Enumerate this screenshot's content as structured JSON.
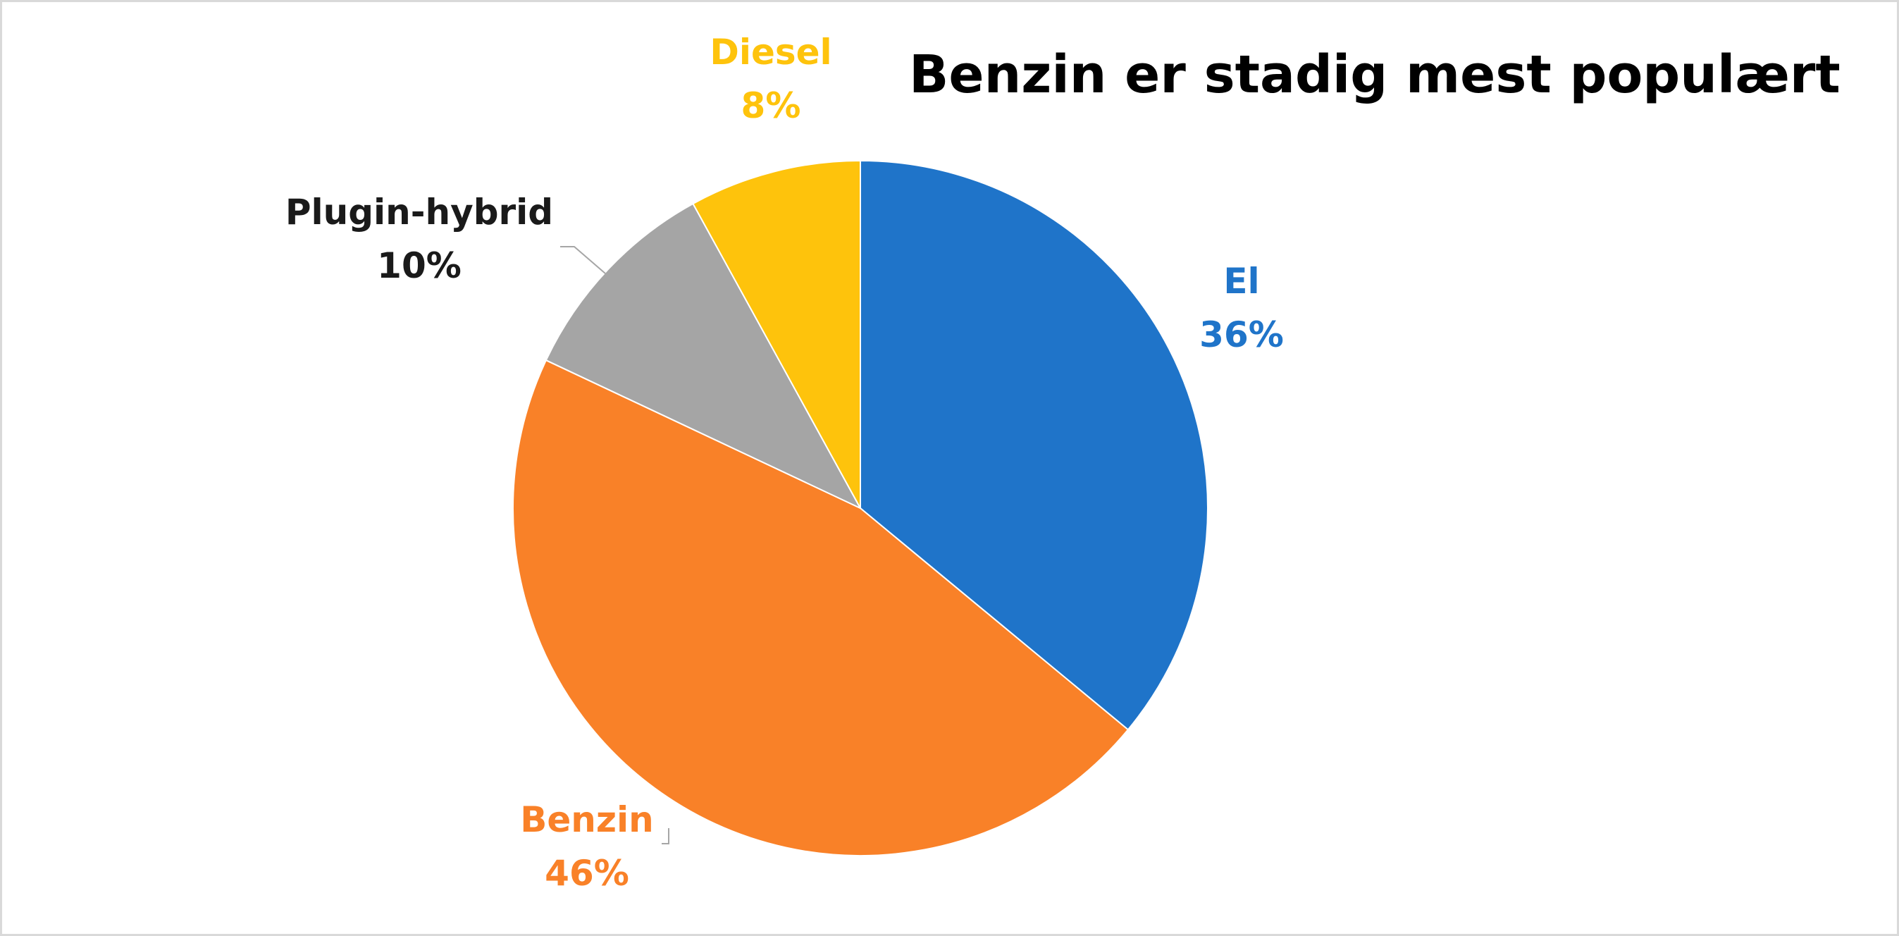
{
  "chart_data": {
    "type": "pie",
    "title": "Benzin er stadig mest populært",
    "start_angle_deg": 0,
    "direction": "clockwise",
    "legend": "none",
    "slices": [
      {
        "name": "El",
        "value": 36,
        "label": "36%",
        "color": "#1f74c9",
        "label_color": "#1f74c9"
      },
      {
        "name": "Benzin",
        "value": 46,
        "label": "46%",
        "color": "#f98128",
        "label_color": "#f98128"
      },
      {
        "name": "Plugin-hybrid",
        "value": 10,
        "label": "10%",
        "color": "#a5a5a5",
        "label_color": "#1a1a1a"
      },
      {
        "name": "Diesel",
        "value": 8,
        "label": "8%",
        "color": "#fec30c",
        "label_color": "#fec30c"
      }
    ]
  }
}
